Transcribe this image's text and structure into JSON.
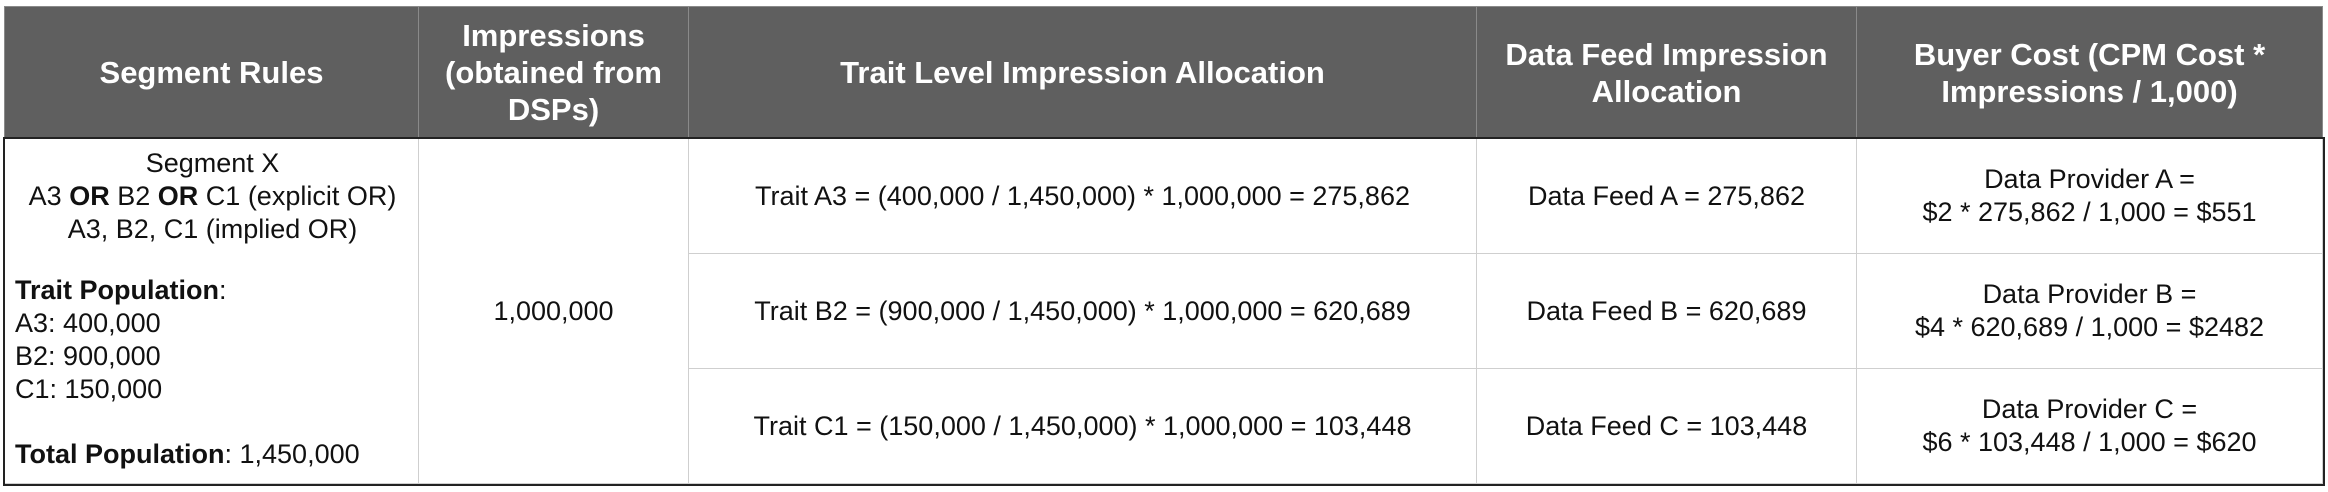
{
  "table": {
    "headers": [
      "Segment Rules",
      "Impressions (obtained from DSPs)",
      "Trait Level Impression Allocation",
      "Data Feed Impression Allocation",
      "Buyer Cost (CPM Cost * Impressions / 1,000)"
    ],
    "segment_rules": {
      "segment_name": "Segment X",
      "explicit_rule": {
        "a": "A3",
        "op1": "OR",
        "b": "B2",
        "op2": "OR",
        "c": "C1",
        "note": "(explicit OR)"
      },
      "implied_rule": "A3, B2, C1 (implied OR)",
      "trait_population_label": "Trait Population",
      "populations": [
        {
          "trait": "A3",
          "value": "400,000"
        },
        {
          "trait": "B2",
          "value": "900,000"
        },
        {
          "trait": "C1",
          "value": "150,000"
        }
      ],
      "total_population_label": "Total Population",
      "total_population_value": "1,450,000"
    },
    "impressions": "1,000,000",
    "rows": [
      {
        "trait_allocation": "Trait A3 = (400,000 / 1,450,000) * 1,000,000 = 275,862",
        "feed_allocation": "Data Feed A = 275,862",
        "buyer_cost_line1": "Data Provider A =",
        "buyer_cost_line2": "$2 * 275,862 / 1,000 = $551"
      },
      {
        "trait_allocation": "Trait B2 = (900,000 / 1,450,000) * 1,000,000 = 620,689",
        "feed_allocation": "Data Feed B = 620,689",
        "buyer_cost_line1": "Data Provider B =",
        "buyer_cost_line2": "$4 * 620,689 / 1,000 = $2482"
      },
      {
        "trait_allocation": "Trait C1 = (150,000 / 1,450,000) * 1,000,000 = 103,448",
        "feed_allocation": "Data Feed C = 103,448",
        "buyer_cost_line1": "Data Provider C =",
        "buyer_cost_line2": "$6 * 103,448 / 1,000 = $620"
      }
    ],
    "colors": {
      "header_bg": "#5f5f5f",
      "header_text": "#ffffff",
      "border": "#cfcfcf"
    }
  }
}
